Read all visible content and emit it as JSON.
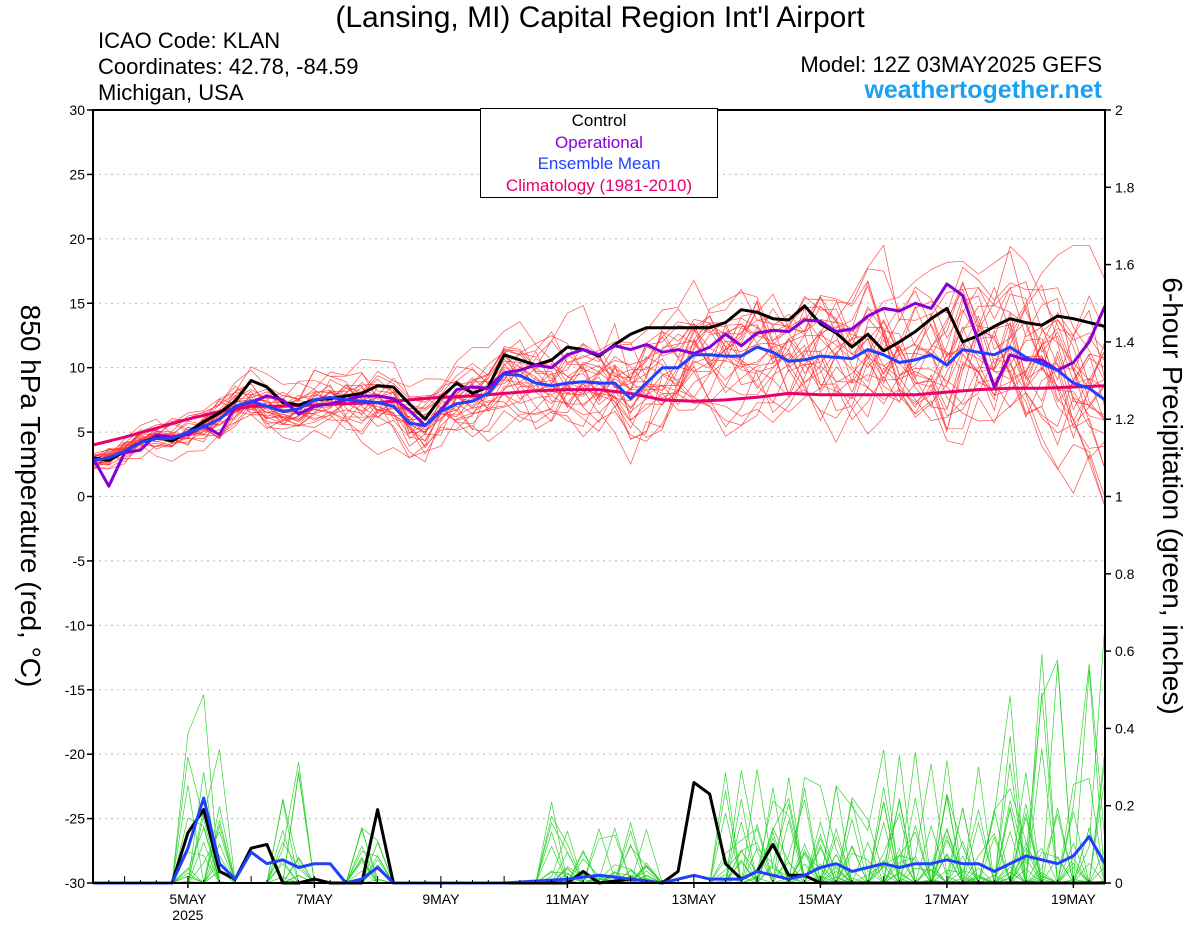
{
  "header": {
    "title": "(Lansing, MI) Capital Region Int'l Airport",
    "icao": "ICAO Code: KLAN",
    "coordinates": "Coordinates: 42.78, -84.59",
    "region": "Michigan, USA",
    "model": "Model: 12Z 03MAY2025 GEFS",
    "site": "weathertogether.net"
  },
  "colors": {
    "control": "#000000",
    "operational": "#8a00d4",
    "ensemble_mean": "#2040ff",
    "climatology": "#e8006e",
    "members_temp": "#ff3030",
    "members_precip": "#20d020",
    "site": "#1ea0f0"
  },
  "chart_data": {
    "type": "line",
    "title": "(Lansing, MI) Capital Region Int'l Airport",
    "ylabel_left": "850 hPa Temperature (red, °C)",
    "ylabel_right": "6-hour Precipitation (green, inches)",
    "ylim_left": [
      -30,
      30
    ],
    "ylim_right": [
      0,
      2
    ],
    "yticks_left": [
      "30",
      "25",
      "20",
      "15",
      "10",
      "5",
      "0",
      "-5",
      "-10",
      "-15",
      "-20",
      "-25",
      "-30"
    ],
    "yticks_right": [
      "2",
      "1.8",
      "1.6",
      "1.4",
      "1.2",
      "1",
      "0.8",
      "0.6",
      "0.4",
      "0.2",
      "0"
    ],
    "x_ticks": [
      "5MAY",
      "7MAY",
      "9MAY",
      "11MAY",
      "13MAY",
      "15MAY",
      "17MAY",
      "19MAY"
    ],
    "x_year_label": "2025",
    "x_start_day": 3.5,
    "x_end_day": 19.5,
    "legend": [
      "Control",
      "Operational",
      "Ensemble Mean",
      "Climatology (1981-2010)"
    ],
    "legend_placement": "top-center",
    "grid": "dotted horizontal",
    "series": [
      {
        "name": "Control",
        "axis": "left",
        "color": "#000000",
        "x": [
          3.5,
          3.75,
          4.0,
          4.25,
          4.5,
          4.75,
          5.0,
          5.25,
          5.5,
          5.75,
          6.0,
          6.25,
          6.5,
          6.75,
          7.0,
          7.25,
          7.5,
          7.75,
          8.0,
          8.25,
          8.5,
          8.75,
          9.0,
          9.25,
          9.5,
          9.75,
          10.0,
          10.25,
          10.5,
          10.75,
          11.0,
          11.25,
          11.5,
          11.75,
          12.0,
          12.25,
          12.5,
          12.75,
          13.0,
          13.25,
          13.5,
          13.75,
          14.0,
          14.25,
          14.5,
          14.75,
          15.0,
          15.25,
          15.5,
          15.75,
          16.0,
          16.25,
          16.5,
          16.75,
          17.0,
          17.25,
          17.5,
          17.75,
          18.0,
          18.25,
          18.5,
          18.75,
          19.0,
          19.25,
          19.5
        ],
        "y": [
          3.0,
          2.8,
          3.5,
          4.2,
          4.6,
          4.3,
          5.0,
          5.8,
          6.5,
          7.4,
          9.0,
          8.5,
          7.3,
          7.1,
          7.5,
          7.6,
          7.8,
          8.0,
          8.6,
          8.5,
          7.2,
          6.0,
          7.7,
          8.8,
          8.0,
          8.5,
          11.0,
          10.6,
          10.2,
          10.6,
          11.6,
          11.4,
          10.9,
          11.8,
          12.6,
          13.1,
          13.1,
          13.1,
          13.1,
          13.1,
          13.5,
          14.5,
          14.3,
          13.8,
          13.7,
          14.8,
          13.4,
          12.7,
          11.6,
          12.6,
          11.3,
          12.0,
          12.8,
          13.8,
          14.6,
          12.0,
          12.5,
          13.2,
          13.8,
          13.5,
          13.3,
          14.0,
          13.8,
          13.5,
          13.2
        ]
      },
      {
        "name": "Operational",
        "axis": "left",
        "color": "#8a00d4",
        "x": [
          3.5,
          3.75,
          4.0,
          4.25,
          4.5,
          4.75,
          5.0,
          5.25,
          5.5,
          5.75,
          6.0,
          6.25,
          6.5,
          6.75,
          7.0,
          7.25,
          7.5,
          7.75,
          8.0,
          8.25,
          8.5,
          8.75,
          9.0,
          9.25,
          9.5,
          9.75,
          10.0,
          10.25,
          10.5,
          10.75,
          11.0,
          11.25,
          11.5,
          11.75,
          12.0,
          12.25,
          12.5,
          12.75,
          13.0,
          13.25,
          13.5,
          13.75,
          14.0,
          14.25,
          14.5,
          14.75,
          15.0,
          15.25,
          15.5,
          15.75,
          16.0,
          16.25,
          16.5,
          16.75,
          17.0,
          17.25,
          17.5,
          17.75,
          18.0,
          18.25,
          18.5,
          18.75,
          19.0,
          19.25,
          19.5
        ],
        "y": [
          3.0,
          0.8,
          3.4,
          3.6,
          4.8,
          4.6,
          4.8,
          5.5,
          4.8,
          7.0,
          7.3,
          7.8,
          7.5,
          6.4,
          7.0,
          7.2,
          7.5,
          7.8,
          7.8,
          7.6,
          6.7,
          5.5,
          6.7,
          8.3,
          8.5,
          8.4,
          9.6,
          9.8,
          10.2,
          10.0,
          11.0,
          11.4,
          11.0,
          11.7,
          11.4,
          11.8,
          11.2,
          11.4,
          11.1,
          11.6,
          12.6,
          11.7,
          12.7,
          12.9,
          12.8,
          13.7,
          13.6,
          12.8,
          13.0,
          14.0,
          14.6,
          14.4,
          15.0,
          14.6,
          16.5,
          15.6,
          12.0,
          8.5,
          11.0,
          10.6,
          10.6,
          9.8,
          10.4,
          12.0,
          14.8
        ]
      },
      {
        "name": "Ensemble Mean",
        "axis": "left",
        "color": "#2040ff",
        "x": [
          3.5,
          3.75,
          4.0,
          4.25,
          4.5,
          4.75,
          5.0,
          5.25,
          5.5,
          5.75,
          6.0,
          6.25,
          6.5,
          6.75,
          7.0,
          7.25,
          7.5,
          7.75,
          8.0,
          8.25,
          8.5,
          8.75,
          9.0,
          9.25,
          9.5,
          9.75,
          10.0,
          10.25,
          10.5,
          10.75,
          11.0,
          11.25,
          11.5,
          11.75,
          12.0,
          12.25,
          12.5,
          12.75,
          13.0,
          13.25,
          13.5,
          13.75,
          14.0,
          14.25,
          14.5,
          14.75,
          15.0,
          15.25,
          15.5,
          15.75,
          16.0,
          16.25,
          16.5,
          16.75,
          17.0,
          17.25,
          17.5,
          17.75,
          18.0,
          18.25,
          18.5,
          18.75,
          19.0,
          19.25,
          19.5
        ],
        "y": [
          2.8,
          3.0,
          3.5,
          4.2,
          4.5,
          4.5,
          5.0,
          5.4,
          6.0,
          7.0,
          7.4,
          7.0,
          6.6,
          6.8,
          7.5,
          7.7,
          7.5,
          7.4,
          7.3,
          7.0,
          5.7,
          5.5,
          6.6,
          7.2,
          7.4,
          8.0,
          9.5,
          9.4,
          8.8,
          8.6,
          8.8,
          8.9,
          8.8,
          8.8,
          7.6,
          8.8,
          10.0,
          10.0,
          11.0,
          11.0,
          10.9,
          10.9,
          11.6,
          11.2,
          10.5,
          10.6,
          10.9,
          10.8,
          10.7,
          11.4,
          11.0,
          10.4,
          10.6,
          11.0,
          10.2,
          11.4,
          11.2,
          11.0,
          11.6,
          10.8,
          10.3,
          9.8,
          8.8,
          8.4,
          7.5
        ]
      },
      {
        "name": "Climatology (1981-2010)",
        "axis": "left",
        "color": "#e8006e",
        "x": [
          3.5,
          4.0,
          4.5,
          5.0,
          5.5,
          6.0,
          6.5,
          7.0,
          7.5,
          8.0,
          8.5,
          9.0,
          9.5,
          10.0,
          10.5,
          11.0,
          11.5,
          12.0,
          12.5,
          13.0,
          13.5,
          14.0,
          14.5,
          15.0,
          15.5,
          16.0,
          16.5,
          17.0,
          17.5,
          18.0,
          18.5,
          19.0,
          19.5
        ],
        "y": [
          4.0,
          4.6,
          5.3,
          6.0,
          6.6,
          7.0,
          7.0,
          7.1,
          7.2,
          7.3,
          7.5,
          7.7,
          7.8,
          8.0,
          8.2,
          8.3,
          8.3,
          8.0,
          7.5,
          7.4,
          7.5,
          7.7,
          8.0,
          7.9,
          7.9,
          7.9,
          7.9,
          8.1,
          8.3,
          8.4,
          8.4,
          8.5,
          8.6
        ]
      },
      {
        "name": "Control",
        "axis": "right",
        "color": "#000000",
        "x": [
          3.5,
          4.0,
          4.5,
          4.75,
          5.0,
          5.25,
          5.5,
          5.75,
          6.0,
          6.25,
          6.5,
          6.75,
          7.0,
          7.25,
          7.5,
          7.75,
          8.0,
          8.25,
          8.5,
          8.75,
          9.0,
          10.0,
          11.0,
          11.25,
          11.5,
          12.0,
          12.5,
          12.75,
          13.0,
          13.25,
          13.5,
          13.75,
          14.0,
          14.25,
          14.5,
          14.75,
          15.0,
          19.5
        ],
        "y": [
          0,
          0,
          0,
          0,
          0.13,
          0.19,
          0.03,
          0.01,
          0.09,
          0.1,
          0,
          0,
          0.01,
          0,
          0,
          0,
          0.19,
          0,
          0,
          0,
          0,
          0,
          0,
          0.03,
          0,
          0.01,
          0,
          0.03,
          0.26,
          0.23,
          0.05,
          0.01,
          0.03,
          0.1,
          0.02,
          0.02,
          0,
          0
        ]
      },
      {
        "name": "Ensemble Mean",
        "axis": "right",
        "color": "#2040ff",
        "x": [
          3.5,
          4.0,
          4.5,
          4.75,
          5.0,
          5.25,
          5.5,
          5.75,
          6.0,
          6.25,
          6.5,
          6.75,
          7.0,
          7.25,
          7.5,
          7.75,
          8.0,
          8.25,
          8.5,
          9.0,
          10.0,
          11.0,
          11.5,
          12.0,
          12.5,
          13.0,
          13.25,
          13.5,
          13.75,
          14.0,
          14.25,
          14.5,
          14.75,
          15.0,
          15.25,
          15.5,
          15.75,
          16.0,
          16.25,
          16.5,
          16.75,
          17.0,
          17.25,
          17.5,
          17.75,
          18.0,
          18.25,
          18.5,
          18.75,
          19.0,
          19.25,
          19.5
        ],
        "y": [
          0,
          0,
          0,
          0,
          0.09,
          0.22,
          0.05,
          0.01,
          0.08,
          0.05,
          0.06,
          0.04,
          0.05,
          0.05,
          0,
          0.01,
          0.04,
          0,
          0,
          0,
          0,
          0.01,
          0.02,
          0.01,
          0,
          0.02,
          0.01,
          0.01,
          0.01,
          0.03,
          0.02,
          0.01,
          0.02,
          0.04,
          0.05,
          0.03,
          0.04,
          0.05,
          0.04,
          0.05,
          0.05,
          0.06,
          0.05,
          0.05,
          0.03,
          0.05,
          0.07,
          0.06,
          0.05,
          0.07,
          0.12,
          0.05
        ]
      }
    ]
  }
}
